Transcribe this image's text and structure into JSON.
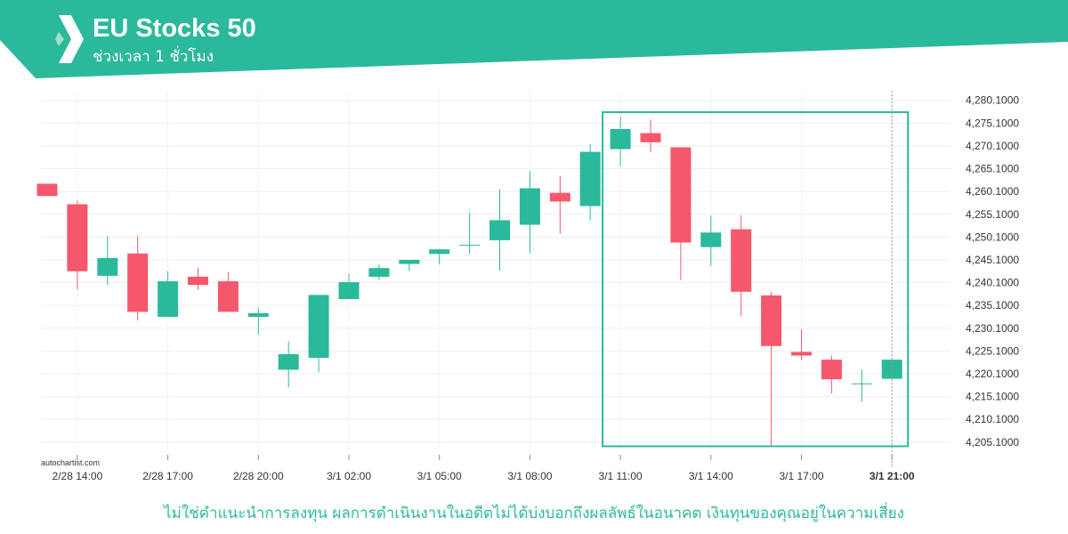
{
  "header": {
    "title": "EU Stocks 50",
    "subtitle": "ช่วงเวลา 1 ชั่วโมง",
    "accent_color": "#2bb99b",
    "logo_icon": "autochartist-logo-icon"
  },
  "source_label": "autochartist.com",
  "disclaimer": "ไม่ใช่คำแนะนำการลงทุน ผลการดำเนินงานในอดีตไม่ได้บ่งบอกถึงผลลัพธ์ในอนาคต เงินทุนของคุณอยู่ในความเสี่ยง",
  "chart_data": {
    "type": "candlestick",
    "up_color": "#2bb99b",
    "down_color": "#f5576c",
    "ylim": [
      4203.5,
      4282.0
    ],
    "yticks": [
      "4,280.1000",
      "4,275.1000",
      "4,270.1000",
      "4,265.1000",
      "4,260.1000",
      "4,255.1000",
      "4,250.1000",
      "4,245.1000",
      "4,240.1000",
      "4,235.1000",
      "4,230.1000",
      "4,225.1000",
      "4,220.1000",
      "4,215.1000",
      "4,210.1000",
      "4,205.1000"
    ],
    "xticks": [
      {
        "index": 1,
        "label": "2/28 14:00"
      },
      {
        "index": 4,
        "label": "2/28 17:00"
      },
      {
        "index": 7,
        "label": "2/28 20:00"
      },
      {
        "index": 10,
        "label": "3/1 02:00"
      },
      {
        "index": 13,
        "label": "3/1 05:00"
      },
      {
        "index": 16,
        "label": "3/1 08:00"
      },
      {
        "index": 19,
        "label": "3/1 11:00"
      },
      {
        "index": 22,
        "label": "3/1 14:00"
      },
      {
        "index": 25,
        "label": "3/1 17:00"
      },
      {
        "index": 28,
        "label": "3/1 21:00",
        "bold": true
      }
    ],
    "candles": [
      {
        "o": 4261.8,
        "h": 4261.8,
        "l": 4259.1,
        "c": 4259.1
      },
      {
        "o": 4257.3,
        "h": 4258.1,
        "l": 4238.6,
        "c": 4242.6
      },
      {
        "o": 4241.6,
        "h": 4250.3,
        "l": 4239.6,
        "c": 4245.5
      },
      {
        "o": 4246.5,
        "h": 4250.4,
        "l": 4231.8,
        "c": 4233.7
      },
      {
        "o": 4232.6,
        "h": 4242.6,
        "l": 4232.6,
        "c": 4240.4
      },
      {
        "o": 4241.4,
        "h": 4243.4,
        "l": 4238.6,
        "c": 4239.6
      },
      {
        "o": 4240.4,
        "h": 4242.4,
        "l": 4233.7,
        "c": 4233.7
      },
      {
        "o": 4232.6,
        "h": 4234.6,
        "l": 4228.7,
        "c": 4233.4
      },
      {
        "o": 4221.0,
        "h": 4227.2,
        "l": 4217.1,
        "c": 4224.4
      },
      {
        "o": 4223.6,
        "h": 4237.4,
        "l": 4220.5,
        "c": 4237.4
      },
      {
        "o": 4236.5,
        "h": 4242.1,
        "l": 4236.5,
        "c": 4240.2
      },
      {
        "o": 4241.4,
        "h": 4244.1,
        "l": 4240.7,
        "c": 4243.3
      },
      {
        "o": 4244.2,
        "h": 4245.1,
        "l": 4242.6,
        "c": 4245.1
      },
      {
        "o": 4246.4,
        "h": 4247.5,
        "l": 4244.1,
        "c": 4247.4
      },
      {
        "o": 4248.2,
        "h": 4255.4,
        "l": 4246.4,
        "c": 4248.4
      },
      {
        "o": 4249.4,
        "h": 4260.6,
        "l": 4242.7,
        "c": 4253.8
      },
      {
        "o": 4252.8,
        "h": 4264.6,
        "l": 4246.6,
        "c": 4260.8
      },
      {
        "o": 4259.8,
        "h": 4263.5,
        "l": 4250.8,
        "c": 4257.9
      },
      {
        "o": 4256.9,
        "h": 4270.5,
        "l": 4253.8,
        "c": 4268.8
      },
      {
        "o": 4269.4,
        "h": 4276.5,
        "l": 4265.6,
        "c": 4273.8
      },
      {
        "o": 4272.9,
        "h": 4275.9,
        "l": 4268.7,
        "c": 4270.9
      },
      {
        "o": 4269.8,
        "h": 4269.8,
        "l": 4240.6,
        "c": 4248.9
      },
      {
        "o": 4247.9,
        "h": 4254.8,
        "l": 4243.8,
        "c": 4251.1
      },
      {
        "o": 4251.8,
        "h": 4254.8,
        "l": 4232.8,
        "c": 4238.1
      },
      {
        "o": 4237.3,
        "h": 4238.1,
        "l": 4204.4,
        "c": 4226.2
      },
      {
        "o": 4224.9,
        "h": 4229.8,
        "l": 4223.2,
        "c": 4224.1
      },
      {
        "o": 4223.2,
        "h": 4224.1,
        "l": 4215.8,
        "c": 4218.9
      },
      {
        "o": 4218.0,
        "h": 4221.0,
        "l": 4213.9,
        "c": 4218.0
      },
      {
        "o": 4219.0,
        "h": 4223.2,
        "l": 4219.0,
        "c": 4223.2
      }
    ],
    "highlight": {
      "start_index": 19,
      "end_index": 28,
      "y_high": 4277.5,
      "y_low": 4204.2
    },
    "vline_index": 28,
    "grid": true
  }
}
